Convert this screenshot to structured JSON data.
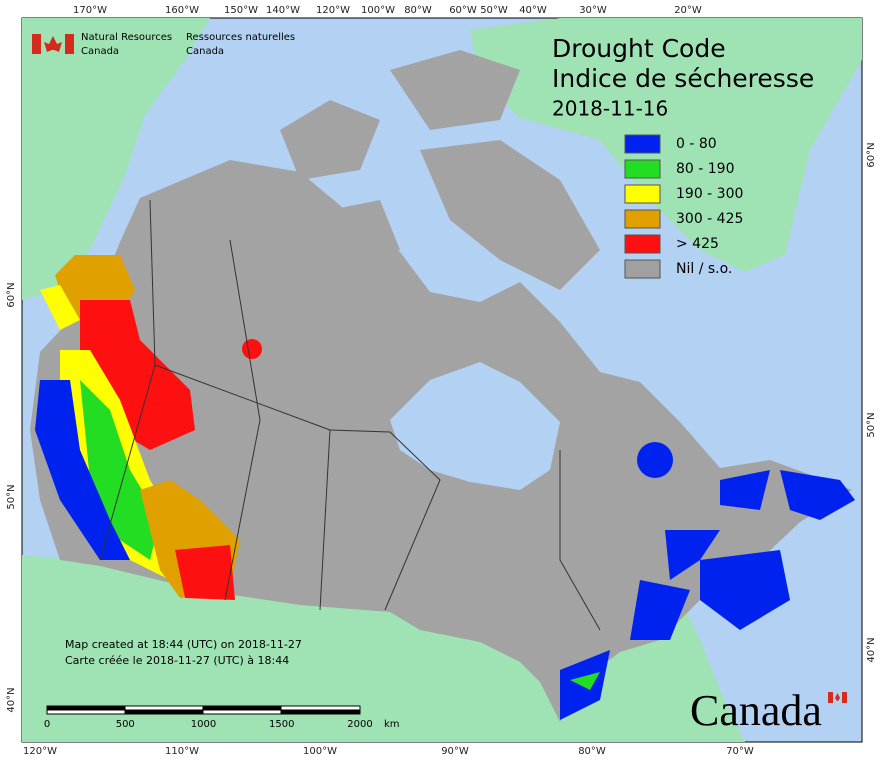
{
  "header": {
    "nrcan_en_1": "Natural Resources",
    "nrcan_en_2": "Canada",
    "nrcan_fr_1": "Ressources naturelles",
    "nrcan_fr_2": "Canada"
  },
  "title": {
    "line1": "Drought Code",
    "line2": "Indice de sécheresse",
    "date": "2018-11-16"
  },
  "legend": [
    {
      "label": "0 - 80",
      "color": "#0022ee"
    },
    {
      "label": "80 - 190",
      "color": "#22dd22"
    },
    {
      "label": "190 - 300",
      "color": "#ffff00"
    },
    {
      "label": "300 - 425",
      "color": "#e0a000"
    },
    {
      "label": "> 425",
      "color": "#ff1010"
    },
    {
      "label": "Nil / s.o.",
      "color": "#a0a0a0"
    }
  ],
  "top_labels": [
    "170°W",
    "160°W",
    "150°W",
    "140°W",
    "120°W",
    "100°W",
    "80°W",
    "60°W",
    "50°W",
    "40°W",
    "30°W",
    "20°W"
  ],
  "bottom_labels": [
    "120°W",
    "110°W",
    "100°W",
    "90°W",
    "80°W",
    "70°W"
  ],
  "left_labels": [
    "60°N",
    "50°N",
    "40°N"
  ],
  "right_labels": [
    "60°N",
    "50°N",
    "40°N"
  ],
  "footnote": {
    "en": "Map created at 18:44 (UTC) on 2018-11-27",
    "fr": "Carte créée le 2018-11-27 (UTC) à 18:44"
  },
  "scale": {
    "ticks": [
      "0",
      "500",
      "1000",
      "1500",
      "2000"
    ],
    "unit": "km"
  },
  "wordmark": "Canada"
}
